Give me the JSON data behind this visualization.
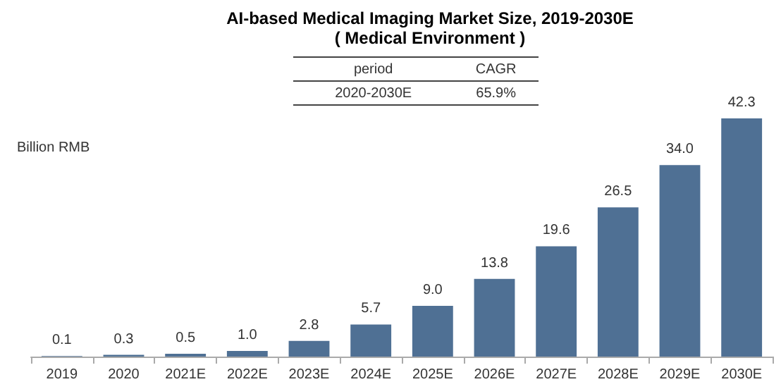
{
  "chart_data": {
    "type": "bar",
    "title": "AI-based Medical Imaging Market Size, 2019-2030E",
    "subtitle": "( Medical Environment )",
    "ylabel": "Billion RMB",
    "annotations": [
      "period",
      "CAGR",
      "2020-2030E",
      "65.9%"
    ],
    "categories": [
      "2019",
      "2020",
      "2021E",
      "2022E",
      "2023E",
      "2024E",
      "2025E",
      "2026E",
      "2027E",
      "2028E",
      "2029E",
      "2030E"
    ],
    "values": [
      0.1,
      0.3,
      0.5,
      1.0,
      2.8,
      5.7,
      9.0,
      13.8,
      19.6,
      26.5,
      34.0,
      42.3
    ],
    "value_labels": [
      "0.1",
      "0.3",
      "0.5",
      "1.0",
      "2.8",
      "5.7",
      "9.0",
      "13.8",
      "19.6",
      "26.5",
      "34.0",
      "42.3"
    ],
    "color": "#4f7094"
  }
}
